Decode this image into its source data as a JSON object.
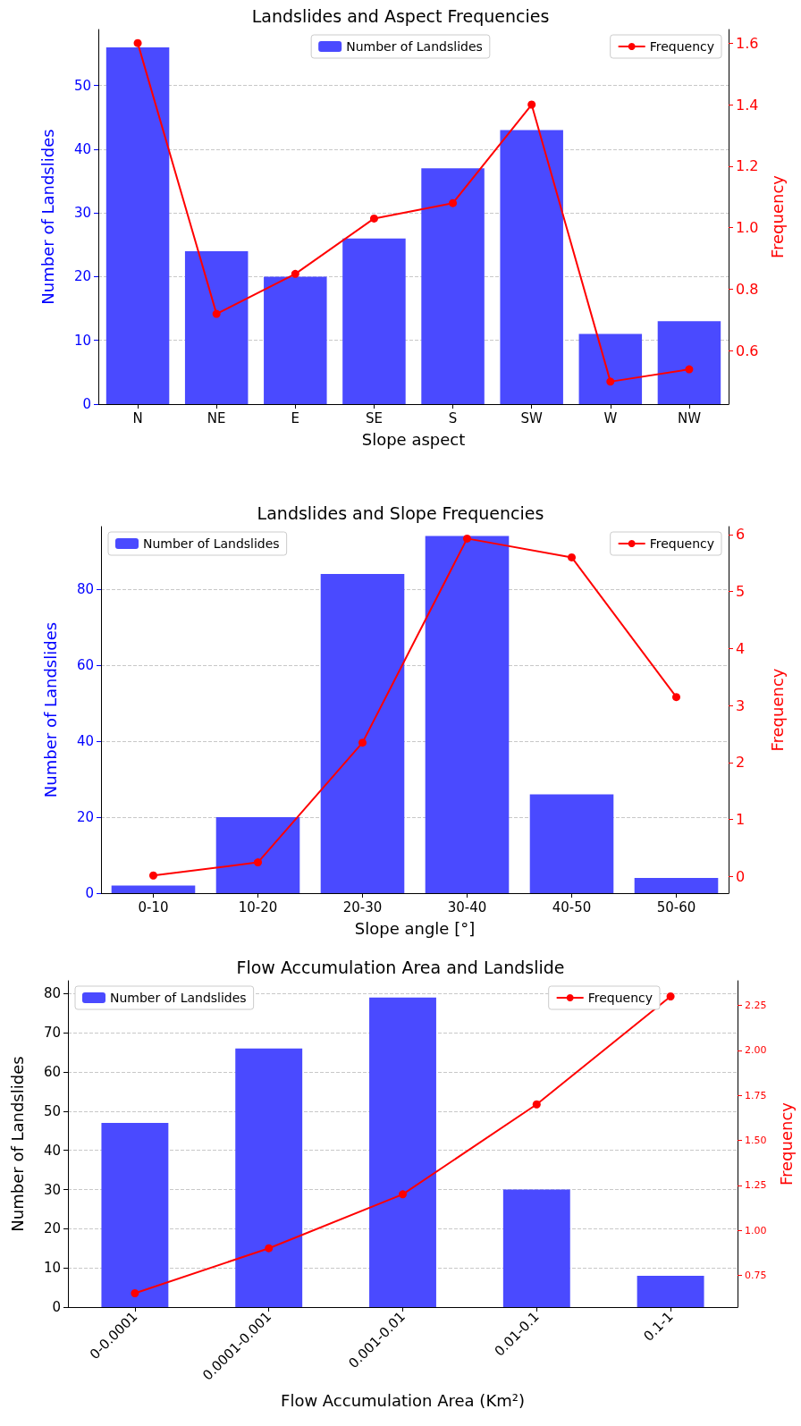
{
  "chart_data": [
    {
      "type": "bar",
      "title": "Landslides and Aspect Frequencies",
      "xlabel": "Slope aspect",
      "ylabel": "Number of Landslides",
      "y2label": "Frequency",
      "categories": [
        "N",
        "NE",
        "E",
        "SE",
        "S",
        "SW",
        "W",
        "NW"
      ],
      "series": [
        {
          "name": "Number of Landslides",
          "color": "#4a4aff",
          "values": [
            56,
            24,
            20,
            26,
            37,
            43,
            11,
            13
          ]
        },
        {
          "name": "Frequency",
          "type": "line",
          "axis": "y2",
          "color": "#ff0000",
          "values": [
            1.6,
            0.72,
            0.85,
            1.03,
            1.08,
            1.4,
            0.5,
            0.54
          ]
        }
      ],
      "legend": "top",
      "ylim": [
        0,
        58.8
      ],
      "yticks": [
        0,
        10,
        20,
        30,
        40,
        50
      ],
      "y2lim": [
        0.427,
        1.644
      ],
      "y2ticks": [
        0.6,
        0.8,
        {
          "value": 1.0,
          "label": "1.0"
        },
        1.2,
        1.4,
        1.6
      ],
      "grid": "y",
      "marker": "circle",
      "line_style": "solid"
    },
    {
      "type": "bar",
      "title": "Landslides and Slope Frequencies",
      "xlabel": "Slope angle [°]",
      "ylabel": "Number of Landslides",
      "y2label": "Frequency",
      "categories": [
        "0-10",
        "10-20",
        "20-30",
        "30-40",
        "40-50",
        "50-60"
      ],
      "series": [
        {
          "name": "Number of Landslides",
          "color": "#4a4aff",
          "values": [
            2,
            20,
            84,
            94,
            26,
            4
          ]
        },
        {
          "name": "Frequency",
          "type": "line",
          "axis": "y2",
          "color": "#ff0000",
          "values": [
            0.02,
            0.25,
            2.35,
            5.93,
            5.6,
            3.15
          ]
        }
      ],
      "legend": "top",
      "ylim": [
        0,
        96.5
      ],
      "yticks": [
        0,
        20,
        40,
        60,
        80
      ],
      "y2lim": [
        -0.29,
        6.14
      ],
      "y2ticks": [
        0,
        1,
        2,
        3,
        4,
        5,
        6
      ],
      "grid": "y",
      "marker": "circle",
      "line_style": "solid"
    },
    {
      "type": "bar",
      "title": "Flow Accumulation Area and Landslide",
      "xlabel": "Flow Accumulation Area (Km²)",
      "ylabel": "Number of Landslides",
      "y2label": "Frequency",
      "categories": [
        "0-0.0001",
        "0.0001-0.001",
        "0.001-0.01",
        "0.01-0.1",
        "0.1-1"
      ],
      "series": [
        {
          "name": "Number of Landslides",
          "color": "#4a4aff",
          "values": [
            47,
            66,
            79,
            30,
            8
          ]
        },
        {
          "name": "Frequency",
          "type": "line",
          "axis": "y2",
          "color": "#ff0000",
          "values": [
            0.65,
            0.9,
            1.2,
            1.7,
            2.3
          ]
        }
      ],
      "legend": "top",
      "ylim": [
        0,
        83.3
      ],
      "yticks": [
        0,
        10,
        20,
        30,
        40,
        50,
        60,
        70,
        80
      ],
      "y2lim": [
        0.573,
        2.387
      ],
      "y2ticks": [
        0.75,
        {
          "value": 1.0,
          "label": "1.00"
        },
        1.25,
        {
          "value": 1.5,
          "label": "1.50"
        },
        1.75,
        {
          "value": 2.0,
          "label": "2.00"
        },
        2.25
      ],
      "grid": "y",
      "marker": "circle",
      "line_style": "solid"
    }
  ]
}
